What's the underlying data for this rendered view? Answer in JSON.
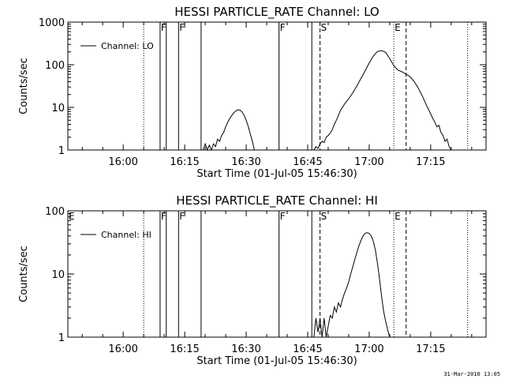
{
  "footer": {
    "timestamp": "31-Mar-2010 13:05"
  },
  "colors": {
    "line": "#000000",
    "background": "#ffffff"
  },
  "chart_data": [
    {
      "type": "line",
      "title": "HESSI PARTICLE_RATE Channel: LO",
      "xlabel": "Start Time (01-Jul-05 15:46:30)",
      "ylabel": "Counts/sec",
      "yscale": "log",
      "xlim": [
        "15:46:30",
        "17:28:30"
      ],
      "ylim": [
        1,
        1000
      ],
      "x_ticks": [
        "16:00",
        "16:15",
        "16:30",
        "16:45",
        "17:00",
        "17:15"
      ],
      "y_ticks": [
        "1",
        "10",
        "100",
        "1000"
      ],
      "legend": "top-left",
      "series": [
        {
          "name": "Channel: LO",
          "points": [
            [
              "16:19:30",
              1.0
            ],
            [
              "16:20:00",
              1.4
            ],
            [
              "16:20:30",
              1.0
            ],
            [
              "16:21:00",
              1.3
            ],
            [
              "16:21:30",
              1.0
            ],
            [
              "16:22:00",
              1.4
            ],
            [
              "16:22:30",
              1.2
            ],
            [
              "16:23:00",
              1.8
            ],
            [
              "16:23:30",
              1.6
            ],
            [
              "16:24:00",
              2.2
            ],
            [
              "16:24:30",
              2.6
            ],
            [
              "16:25:00",
              3.5
            ],
            [
              "16:25:30",
              4.5
            ],
            [
              "16:26:00",
              5.5
            ],
            [
              "16:26:30",
              6.5
            ],
            [
              "16:27:00",
              7.5
            ],
            [
              "16:27:30",
              8.3
            ],
            [
              "16:28:00",
              8.8
            ],
            [
              "16:28:30",
              8.6
            ],
            [
              "16:29:00",
              7.8
            ],
            [
              "16:29:30",
              6.5
            ],
            [
              "16:30:00",
              5.0
            ],
            [
              "16:30:30",
              3.6
            ],
            [
              "16:31:00",
              2.4
            ],
            [
              "16:31:30",
              1.6
            ],
            [
              "16:32:00",
              1.0
            ],
            [
              "16:46:30",
              1.0
            ],
            [
              "16:47:00",
              1.2
            ],
            [
              "16:47:30",
              1.1
            ],
            [
              "16:48:00",
              1.4
            ],
            [
              "16:48:30",
              1.6
            ],
            [
              "16:49:00",
              1.5
            ],
            [
              "16:49:30",
              2.0
            ],
            [
              "16:50:00",
              2.2
            ],
            [
              "16:50:30",
              2.5
            ],
            [
              "16:51:00",
              3.0
            ],
            [
              "16:51:30",
              4.0
            ],
            [
              "16:52:00",
              5.0
            ],
            [
              "16:52:30",
              6.5
            ],
            [
              "16:53:00",
              8.5
            ],
            [
              "16:54:00",
              12
            ],
            [
              "16:55:00",
              16
            ],
            [
              "16:56:00",
              22
            ],
            [
              "16:57:00",
              32
            ],
            [
              "16:58:00",
              48
            ],
            [
              "16:59:00",
              72
            ],
            [
              "17:00:00",
              110
            ],
            [
              "17:01:00",
              160
            ],
            [
              "17:02:00",
              205
            ],
            [
              "17:03:00",
              215
            ],
            [
              "17:04:00",
              195
            ],
            [
              "17:05:00",
              140
            ],
            [
              "17:06:00",
              95
            ],
            [
              "17:07:00",
              75
            ],
            [
              "17:08:00",
              68
            ],
            [
              "17:09:00",
              60
            ],
            [
              "17:10:00",
              52
            ],
            [
              "17:11:00",
              40
            ],
            [
              "17:12:00",
              28
            ],
            [
              "17:13:00",
              18
            ],
            [
              "17:14:00",
              11
            ],
            [
              "17:15:00",
              7
            ],
            [
              "17:15:30",
              5.5
            ],
            [
              "17:16:00",
              4.5
            ],
            [
              "17:16:30",
              3.5
            ],
            [
              "17:17:00",
              3.8
            ],
            [
              "17:17:30",
              2.6
            ],
            [
              "17:18:00",
              2.2
            ],
            [
              "17:18:30",
              1.6
            ],
            [
              "17:19:00",
              1.8
            ],
            [
              "17:19:30",
              1.2
            ],
            [
              "17:20:00",
              1.0
            ]
          ]
        }
      ],
      "markers": [
        {
          "time": "16:05:00",
          "style": "dotted",
          "label": ""
        },
        {
          "time": "16:09:00",
          "style": "solid",
          "label": "F"
        },
        {
          "time": "16:10:30",
          "style": "solid",
          "label": ""
        },
        {
          "time": "16:13:30",
          "style": "solid",
          "label": "F"
        },
        {
          "time": "16:19:00",
          "style": "solid",
          "label": ""
        },
        {
          "time": "16:38:00",
          "style": "solid",
          "label": "F"
        },
        {
          "time": "16:46:00",
          "style": "solid",
          "label": ""
        },
        {
          "time": "16:48:00",
          "style": "dashed",
          "label": "S"
        },
        {
          "time": "17:06:00",
          "style": "dotted",
          "label": "E"
        },
        {
          "time": "17:09:00",
          "style": "dashed",
          "label": ""
        },
        {
          "time": "17:24:00",
          "style": "dotted",
          "label": ""
        }
      ]
    },
    {
      "type": "line",
      "title": "HESSI PARTICLE_RATE Channel: HI",
      "xlabel": "Start Time (01-Jul-05 15:46:30)",
      "ylabel": "Counts/sec",
      "yscale": "log",
      "xlim": [
        "15:46:30",
        "17:28:30"
      ],
      "ylim": [
        1,
        100
      ],
      "x_ticks": [
        "16:00",
        "16:15",
        "16:30",
        "16:45",
        "17:00",
        "17:15"
      ],
      "y_ticks": [
        "1",
        "10",
        "100"
      ],
      "legend": "top-left",
      "series": [
        {
          "name": "Channel: HI",
          "points": [
            [
              "16:46:30",
              1.0
            ],
            [
              "16:47:00",
              2.0
            ],
            [
              "16:47:30",
              1.2
            ],
            [
              "16:48:00",
              2.0
            ],
            [
              "16:48:30",
              1.0
            ],
            [
              "16:49:00",
              2.0
            ],
            [
              "16:49:30",
              1.0
            ],
            [
              "16:50:00",
              1.5
            ],
            [
              "16:50:30",
              2.2
            ],
            [
              "16:51:00",
              2.0
            ],
            [
              "16:51:30",
              3.0
            ],
            [
              "16:52:00",
              2.5
            ],
            [
              "16:52:30",
              3.5
            ],
            [
              "16:53:00",
              3.0
            ],
            [
              "16:53:30",
              4.0
            ],
            [
              "16:54:00",
              5.0
            ],
            [
              "16:54:30",
              6.0
            ],
            [
              "16:55:00",
              7.5
            ],
            [
              "16:55:30",
              10
            ],
            [
              "16:56:00",
              13
            ],
            [
              "16:56:30",
              17
            ],
            [
              "16:57:00",
              22
            ],
            [
              "16:57:30",
              28
            ],
            [
              "16:58:00",
              34
            ],
            [
              "16:58:30",
              40
            ],
            [
              "16:59:00",
              44
            ],
            [
              "16:59:30",
              45
            ],
            [
              "17:00:00",
              44
            ],
            [
              "17:00:30",
              40
            ],
            [
              "17:01:00",
              33
            ],
            [
              "17:01:30",
              24
            ],
            [
              "17:02:00",
              15
            ],
            [
              "17:02:30",
              8.5
            ],
            [
              "17:03:00",
              4.5
            ],
            [
              "17:03:30",
              2.6
            ],
            [
              "17:04:00",
              1.8
            ],
            [
              "17:04:30",
              1.3
            ],
            [
              "17:05:00",
              1.0
            ]
          ]
        }
      ],
      "markers": [
        {
          "time": "15:46:30",
          "style": "none",
          "label": "E"
        },
        {
          "time": "16:05:00",
          "style": "dotted",
          "label": ""
        },
        {
          "time": "16:09:00",
          "style": "solid",
          "label": "F"
        },
        {
          "time": "16:10:30",
          "style": "solid",
          "label": ""
        },
        {
          "time": "16:13:30",
          "style": "solid",
          "label": "F"
        },
        {
          "time": "16:19:00",
          "style": "solid",
          "label": ""
        },
        {
          "time": "16:38:00",
          "style": "solid",
          "label": "F"
        },
        {
          "time": "16:46:00",
          "style": "solid",
          "label": ""
        },
        {
          "time": "16:48:00",
          "style": "dashed",
          "label": "S"
        },
        {
          "time": "17:06:00",
          "style": "dotted",
          "label": "E"
        },
        {
          "time": "17:09:00",
          "style": "dashed",
          "label": ""
        },
        {
          "time": "17:24:00",
          "style": "dotted",
          "label": ""
        }
      ]
    }
  ]
}
